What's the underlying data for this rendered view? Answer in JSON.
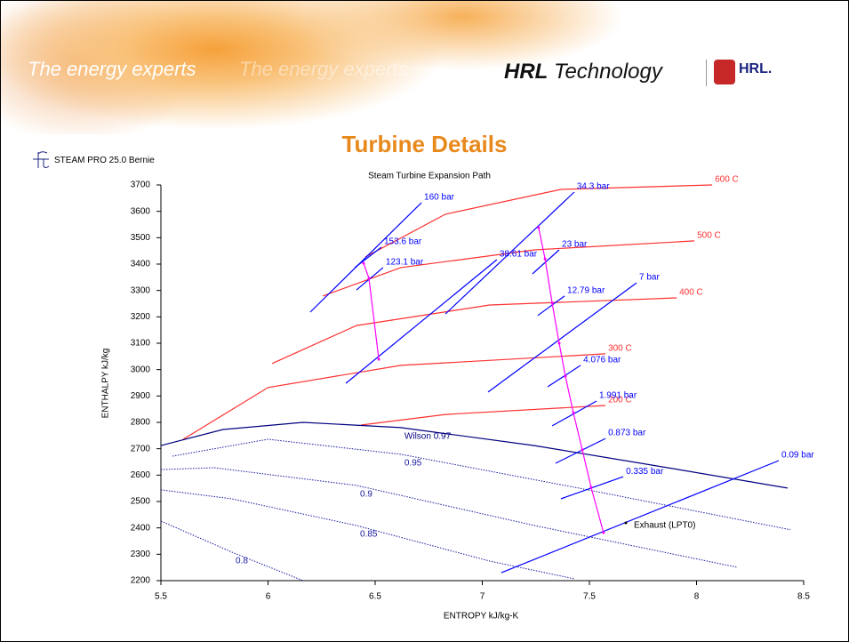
{
  "header": {
    "tagline": "The energy experts",
    "tagline_echo": "The energy experts",
    "brand_bold": "HRL",
    "brand_light": "Technology",
    "logo_text": "HRL.",
    "slide_title": "Turbine Details",
    "software": "STEAM PRO 25.0  Bernie"
  },
  "chart_data": {
    "type": "line",
    "title": "Steam Turbine Expansion Path",
    "x_label": "ENTROPY   kJ/kg-K",
    "y_label": "ENTHALPY   kJ/kg",
    "xlim": [
      5.5,
      8.5
    ],
    "ylim": [
      2200,
      3700
    ],
    "xticks": [
      5.5,
      6,
      6.5,
      7,
      7.5,
      8,
      8.5
    ],
    "yticks": [
      2200,
      2300,
      2400,
      2500,
      2600,
      2700,
      2800,
      2900,
      3000,
      3100,
      3200,
      3300,
      3400,
      3500,
      3600,
      3700
    ],
    "series": [
      {
        "name": "600  C",
        "color": "#ff3030",
        "x": [
          6.454,
          6.828,
          7.367,
          8.073
        ],
        "values": [
          3427,
          3589,
          3683,
          3700
        ]
      },
      {
        "name": "500  C",
        "color": "#ff3030",
        "x": [
          6.255,
          6.62,
          7.243,
          7.99
        ],
        "values": [
          3279,
          3387,
          3454,
          3488
        ]
      },
      {
        "name": "400  C",
        "color": "#ff3030",
        "x": [
          6.019,
          6.413,
          7.035,
          7.907
        ],
        "values": [
          3023,
          3167,
          3245,
          3272
        ]
      },
      {
        "name": "300  C",
        "color": "#ff3030",
        "x": [
          5.604,
          6.0,
          6.62,
          7.575
        ],
        "values": [
          2736,
          2932,
          3016,
          3060
        ]
      },
      {
        "name": "200  C",
        "color": "#ff3030",
        "x": [
          6.434,
          6.828,
          7.575
        ],
        "values": [
          2790,
          2830,
          2864
        ]
      },
      {
        "name": "Wilson 0.97",
        "color": "#000080",
        "x": [
          5.5,
          5.79,
          6.164,
          6.62,
          7.243,
          7.865,
          8.425
        ],
        "values": [
          2712,
          2773,
          2800,
          2780,
          2712,
          2628,
          2551
        ]
      },
      {
        "name": "0.95",
        "color": "#1a1aa0",
        "style": "dotted",
        "x": [
          5.554,
          6.0,
          6.62,
          7.45,
          8.438
        ],
        "values": [
          2672,
          2736,
          2679,
          2551,
          2393
        ]
      },
      {
        "name": "0.9",
        "color": "#1a1aa0",
        "style": "dotted",
        "x": [
          5.5,
          5.749,
          6.413,
          7.243,
          8.189
        ],
        "values": [
          2621,
          2628,
          2561,
          2409,
          2251
        ]
      },
      {
        "name": "0.85",
        "color": "#1a1aa0",
        "style": "dotted",
        "x": [
          5.5,
          5.832,
          6.413,
          7.035,
          7.429
        ],
        "values": [
          2544,
          2510,
          2409,
          2274,
          2207
        ]
      },
      {
        "name": "0.8",
        "color": "#1a1aa0",
        "style": "dotted",
        "x": [
          5.5,
          5.832,
          6.164
        ],
        "values": [
          2426,
          2308,
          2200
        ]
      },
      {
        "name": "160 bar",
        "color": "#0000ff",
        "x": [
          6.197,
          6.716
        ],
        "values": [
          3218,
          3633
        ]
      },
      {
        "name": "153.6 bar",
        "color": "#0000ff",
        "x": [
          6.405,
          6.529
        ],
        "values": [
          3387,
          3464
        ]
      },
      {
        "name": "123.1 bar",
        "color": "#0000ff",
        "x": [
          6.413,
          6.537
        ],
        "values": [
          3302,
          3387
        ]
      },
      {
        "name": "38.61 bar",
        "color": "#0000ff",
        "x": [
          6.363,
          7.068
        ],
        "values": [
          2948,
          3417
        ]
      },
      {
        "name": "34.3 bar",
        "color": "#0000ff",
        "x": [
          6.828,
          7.429
        ],
        "values": [
          3211,
          3673
        ]
      },
      {
        "name": "23 bar",
        "color": "#0000ff",
        "x": [
          7.234,
          7.359
        ],
        "values": [
          3363,
          3454
        ]
      },
      {
        "name": "12.79 bar",
        "color": "#0000ff",
        "x": [
          7.259,
          7.384
        ],
        "values": [
          3205,
          3279
        ]
      },
      {
        "name": "7 bar",
        "color": "#0000ff",
        "x": [
          7.027,
          7.72
        ],
        "values": [
          2915,
          3329
        ]
      },
      {
        "name": "4.076 bar",
        "color": "#0000ff",
        "x": [
          7.305,
          7.459
        ],
        "values": [
          2935,
          3016
        ]
      },
      {
        "name": "1.991 bar",
        "color": "#0000ff",
        "x": [
          7.326,
          7.533
        ],
        "values": [
          2787,
          2881
        ]
      },
      {
        "name": "0.873 bar",
        "color": "#0000ff",
        "x": [
          7.342,
          7.575
        ],
        "values": [
          2645,
          2739
        ]
      },
      {
        "name": "0.335 bar",
        "color": "#0000ff",
        "x": [
          7.367,
          7.658
        ],
        "values": [
          2510,
          2594
        ]
      },
      {
        "name": "0.09 bar",
        "color": "#0000ff",
        "x": [
          7.089,
          8.384
        ],
        "values": [
          2230,
          2655
        ]
      },
      {
        "color": "#ff00ff",
        "x": [
          6.446,
          6.471,
          6.517
        ],
        "values": [
          3403,
          3346,
          3039
        ]
      },
      {
        "color": "#ff00ff",
        "x": [
          7.263,
          7.293,
          7.326,
          7.359,
          7.388,
          7.425,
          7.467,
          7.508,
          7.566
        ],
        "values": [
          3538,
          3420,
          3252,
          3100,
          2975,
          2837,
          2696,
          2554,
          2382
        ]
      }
    ],
    "annotations": [
      {
        "text": "Exhaust (LPT0)",
        "x": 7.67,
        "y": 2419
      }
    ]
  }
}
